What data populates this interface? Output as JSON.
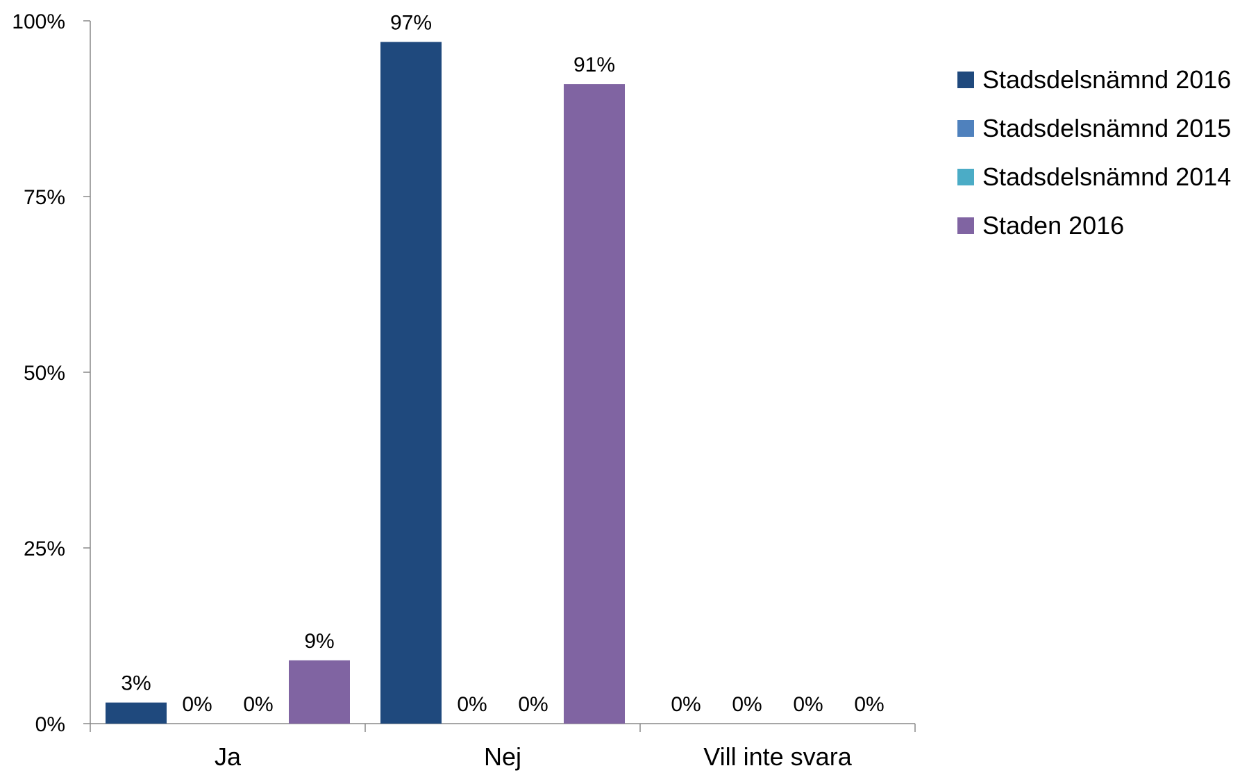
{
  "chart_data": {
    "type": "bar",
    "categories": [
      "Ja",
      "Nej",
      "Vill inte svara"
    ],
    "series": [
      {
        "name": "Stadsdelsnämnd 2016",
        "color": "#1F497D",
        "values": [
          3,
          97,
          0
        ],
        "labels": [
          "3%",
          "97%",
          "0%"
        ]
      },
      {
        "name": "Stadsdelsnämnd 2015",
        "color": "#4F81BD",
        "values": [
          0,
          0,
          0
        ],
        "labels": [
          "0%",
          "0%",
          "0%"
        ]
      },
      {
        "name": "Stadsdelsnämnd 2014",
        "color": "#4BACC6",
        "values": [
          0,
          0,
          0
        ],
        "labels": [
          "0%",
          "0%",
          "0%"
        ]
      },
      {
        "name": "Staden 2016",
        "color": "#8064A2",
        "values": [
          9,
          91,
          0
        ],
        "labels": [
          "9%",
          "91%",
          "0%"
        ]
      }
    ],
    "ylim": [
      0,
      100
    ],
    "yticks": [
      {
        "value": 0,
        "label": "0%"
      },
      {
        "value": 25,
        "label": "25%"
      },
      {
        "value": 50,
        "label": "50%"
      },
      {
        "value": 75,
        "label": "75%"
      },
      {
        "value": 100,
        "label": "100%"
      }
    ],
    "title": "",
    "xlabel": "",
    "ylabel": "",
    "grid": false,
    "legend_position": "right"
  }
}
